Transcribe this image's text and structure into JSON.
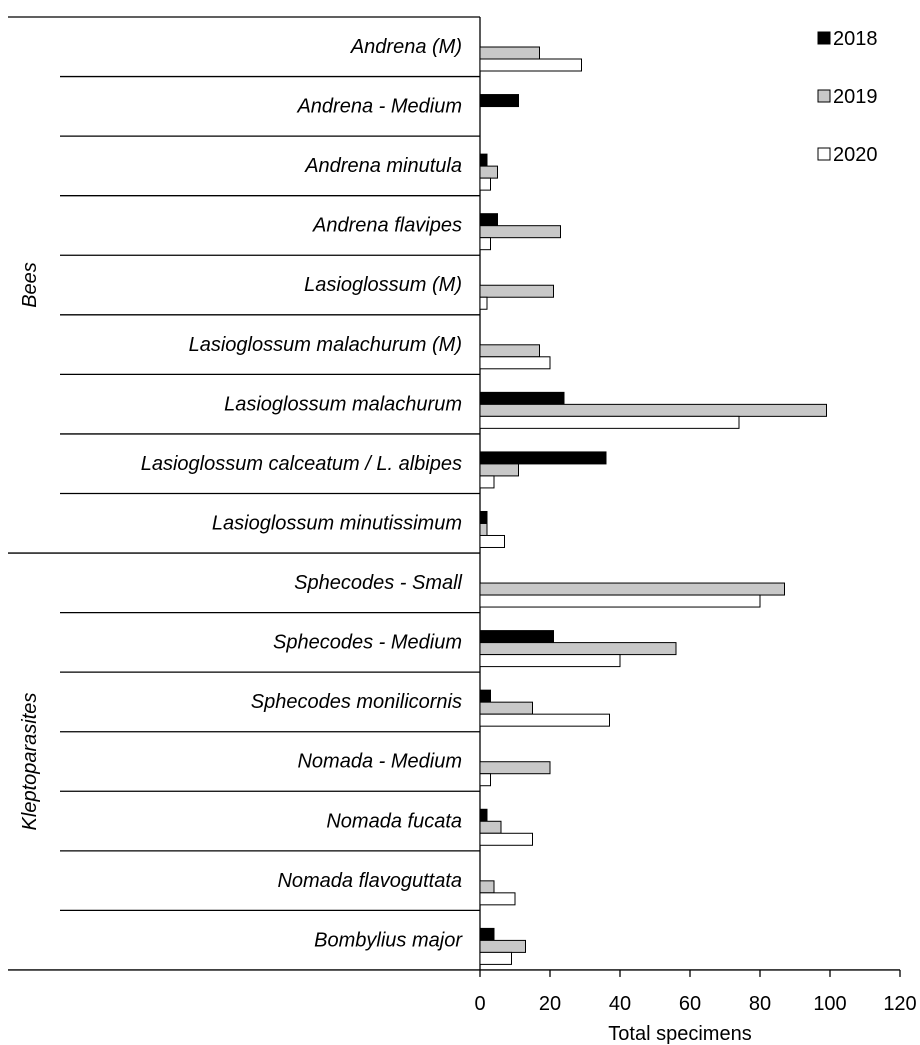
{
  "chart_data": {
    "type": "bar",
    "orientation": "horizontal",
    "xlabel": "Total specimens",
    "xlim": [
      0,
      120
    ],
    "xticks": [
      0,
      20,
      40,
      60,
      80,
      100,
      120
    ],
    "legend_position": "top-right",
    "grid": false,
    "categories": [
      "Andrena (M)",
      "Andrena - Medium",
      "Andrena minutula",
      "Andrena flavipes",
      "Lasioglossum (M)",
      "Lasioglossum malachurum (M)",
      "Lasioglossum malachurum",
      "Lasioglossum calceatum / L. albipes",
      "Lasioglossum minutissimum",
      "Sphecodes - Small",
      "Sphecodes - Medium",
      "Sphecodes monilicornis",
      "Nomada - Medium",
      "Nomada fucata",
      "Nomada flavoguttata",
      "Bombylius major"
    ],
    "groups": [
      {
        "label": "Bees",
        "count": 9
      },
      {
        "label": "Kleptoparasites",
        "count": 7
      }
    ],
    "series": [
      {
        "name": "2018",
        "color": "#000000",
        "values": [
          0,
          11,
          2,
          5,
          0,
          0,
          24,
          36,
          2,
          0,
          21,
          3,
          0,
          2,
          0,
          4
        ]
      },
      {
        "name": "2019",
        "color": "#c8c8c8",
        "values": [
          17,
          0,
          5,
          23,
          21,
          17,
          99,
          11,
          2,
          87,
          56,
          15,
          20,
          6,
          4,
          13
        ]
      },
      {
        "name": "2020",
        "color": "#ffffff",
        "values": [
          29,
          0,
          3,
          3,
          2,
          20,
          74,
          4,
          7,
          80,
          40,
          37,
          3,
          15,
          10,
          9
        ]
      }
    ]
  }
}
